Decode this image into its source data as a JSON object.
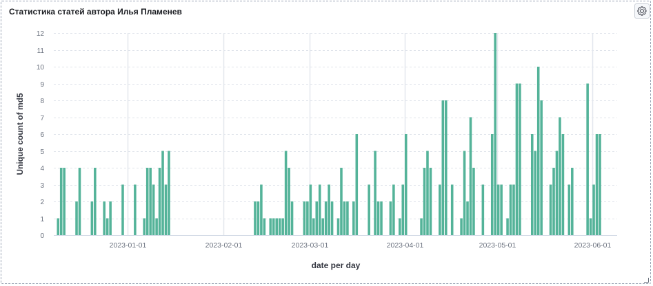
{
  "panel": {
    "title": "Статистика статей автора Илья Пламенев",
    "options_icon": "gear-icon"
  },
  "chart_data": {
    "type": "bar",
    "xlabel": "date per day",
    "ylabel": "Unique count of md5",
    "ylim": [
      0,
      12
    ],
    "yticks": [
      0,
      1,
      2,
      3,
      4,
      5,
      6,
      7,
      8,
      9,
      10,
      11,
      12
    ],
    "xlim": [
      "2022-12-08",
      "2023-06-09"
    ],
    "xticks": [
      "2023-01-01",
      "2023-02-01",
      "2023-03-01",
      "2023-04-01",
      "2023-05-01",
      "2023-06-01"
    ],
    "grid": true,
    "color": "#54b399",
    "points": [
      [
        "2022-12-09",
        1
      ],
      [
        "2022-12-10",
        4
      ],
      [
        "2022-12-11",
        4
      ],
      [
        "2022-12-15",
        2
      ],
      [
        "2022-12-16",
        4
      ],
      [
        "2022-12-20",
        2
      ],
      [
        "2022-12-21",
        4
      ],
      [
        "2022-12-24",
        2
      ],
      [
        "2022-12-25",
        1
      ],
      [
        "2022-12-26",
        2
      ],
      [
        "2022-12-30",
        3
      ],
      [
        "2023-01-03",
        3
      ],
      [
        "2023-01-06",
        1
      ],
      [
        "2023-01-07",
        4
      ],
      [
        "2023-01-08",
        4
      ],
      [
        "2023-01-09",
        3
      ],
      [
        "2023-01-10",
        1
      ],
      [
        "2023-01-11",
        4
      ],
      [
        "2023-01-12",
        5
      ],
      [
        "2023-01-13",
        3
      ],
      [
        "2023-01-14",
        5
      ],
      [
        "2023-02-11",
        2
      ],
      [
        "2023-02-12",
        2
      ],
      [
        "2023-02-13",
        3
      ],
      [
        "2023-02-14",
        1
      ],
      [
        "2023-02-16",
        1
      ],
      [
        "2023-02-17",
        1
      ],
      [
        "2023-02-18",
        1
      ],
      [
        "2023-02-19",
        1
      ],
      [
        "2023-02-20",
        1
      ],
      [
        "2023-02-21",
        5
      ],
      [
        "2023-02-22",
        4
      ],
      [
        "2023-02-23",
        2
      ],
      [
        "2023-02-27",
        2
      ],
      [
        "2023-02-28",
        2
      ],
      [
        "2023-03-01",
        3
      ],
      [
        "2023-03-02",
        1
      ],
      [
        "2023-03-03",
        2
      ],
      [
        "2023-03-04",
        3
      ],
      [
        "2023-03-05",
        1
      ],
      [
        "2023-03-06",
        2
      ],
      [
        "2023-03-07",
        3
      ],
      [
        "2023-03-08",
        2
      ],
      [
        "2023-03-10",
        1
      ],
      [
        "2023-03-11",
        4
      ],
      [
        "2023-03-12",
        2
      ],
      [
        "2023-03-13",
        2
      ],
      [
        "2023-03-15",
        2
      ],
      [
        "2023-03-16",
        6
      ],
      [
        "2023-03-20",
        3
      ],
      [
        "2023-03-22",
        5
      ],
      [
        "2023-03-23",
        2
      ],
      [
        "2023-03-24",
        2
      ],
      [
        "2023-03-27",
        2
      ],
      [
        "2023-03-28",
        3
      ],
      [
        "2023-03-30",
        1
      ],
      [
        "2023-03-31",
        3
      ],
      [
        "2023-04-01",
        6
      ],
      [
        "2023-04-06",
        1
      ],
      [
        "2023-04-07",
        4
      ],
      [
        "2023-04-08",
        5
      ],
      [
        "2023-04-09",
        4
      ],
      [
        "2023-04-12",
        3
      ],
      [
        "2023-04-13",
        8
      ],
      [
        "2023-04-14",
        8
      ],
      [
        "2023-04-16",
        3
      ],
      [
        "2023-04-19",
        1
      ],
      [
        "2023-04-20",
        5
      ],
      [
        "2023-04-21",
        2
      ],
      [
        "2023-04-22",
        7
      ],
      [
        "2023-04-23",
        4
      ],
      [
        "2023-04-26",
        3
      ],
      [
        "2023-04-29",
        6
      ],
      [
        "2023-04-30",
        12
      ],
      [
        "2023-05-01",
        3
      ],
      [
        "2023-05-02",
        3
      ],
      [
        "2023-05-04",
        1
      ],
      [
        "2023-05-05",
        3
      ],
      [
        "2023-05-06",
        3
      ],
      [
        "2023-05-07",
        9
      ],
      [
        "2023-05-08",
        9
      ],
      [
        "2023-05-12",
        6
      ],
      [
        "2023-05-13",
        5
      ],
      [
        "2023-05-14",
        10
      ],
      [
        "2023-05-15",
        8
      ],
      [
        "2023-05-18",
        3
      ],
      [
        "2023-05-19",
        4
      ],
      [
        "2023-05-20",
        5
      ],
      [
        "2023-05-21",
        7
      ],
      [
        "2023-05-22",
        6
      ],
      [
        "2023-05-24",
        3
      ],
      [
        "2023-05-25",
        4
      ],
      [
        "2023-05-30",
        9
      ],
      [
        "2023-05-31",
        1
      ],
      [
        "2023-06-01",
        3
      ],
      [
        "2023-06-02",
        6
      ],
      [
        "2023-06-03",
        6
      ]
    ]
  }
}
